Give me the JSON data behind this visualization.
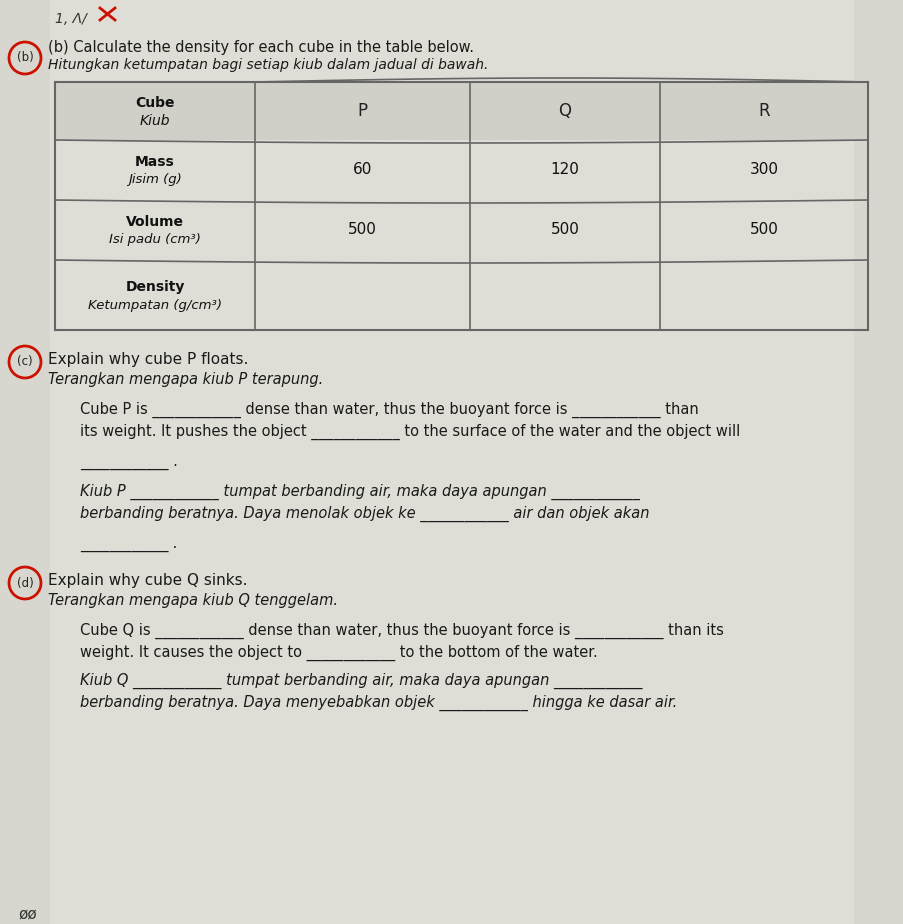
{
  "bg_color": "#c8c8c0",
  "page_color": "#dcdbd4",
  "title_b_text": "(b) Calculate the density for each cube in the table below.",
  "title_b_malay": "Hitungkan ketumpatan bagi setiap kiub dalam jadual di bawah.",
  "table_col0_r1": "Cube",
  "table_col0_r1b": "Kiub",
  "table_col0_r2": "Mass",
  "table_col0_r2b": "Jisim (g)",
  "table_col0_r3": "Volume",
  "table_col0_r3b": "Isi padu (cm³)",
  "table_col0_r4": "Density",
  "table_col0_r4b": "Ketumpatan (g/cm³)",
  "table_P_mass": "60",
  "table_Q_mass": "120",
  "table_R_mass": "300",
  "table_P_vol": "500",
  "table_Q_vol": "500",
  "table_R_vol": "500",
  "header_P": "P",
  "header_Q": "Q",
  "header_R": "R",
  "sec_c_heading": "Explain why cube P floats.",
  "sec_c_malay_heading": "Terangkan mengapa kiub P terapung.",
  "sec_c_line1": "Cube P is ____________ dense than water, thus the buoyant force is ____________ than",
  "sec_c_line2": "its weight. It pushes the object ____________ to the surface of the water and the object will",
  "sec_c_line3": "____________ .",
  "sec_c_m1": "Kiub P ____________ tumpat berbanding air, maka daya apungan ____________",
  "sec_c_m2": "berbanding beratnya. Daya menolak objek ke ____________ air dan objek akan",
  "sec_c_m3": "____________ .",
  "sec_d_heading": "Explain why cube Q sinks.",
  "sec_d_malay_heading": "Terangkan mengapa kiub Q tenggelam.",
  "sec_d_line1": "Cube Q is ____________ dense than water, thus the buoyant force is ____________ than its",
  "sec_d_line2": "weight. It causes the object to ____________ to the bottom of the water.",
  "sec_d_m1": "Kiub Q ____________ tumpat berbanding air, maka daya apungan ____________",
  "sec_d_m2": "berbanding beratnya. Daya menyebabkan objek ____________ hingga ke dasar air.",
  "scribble": "1, Λ/",
  "footer": "øø"
}
